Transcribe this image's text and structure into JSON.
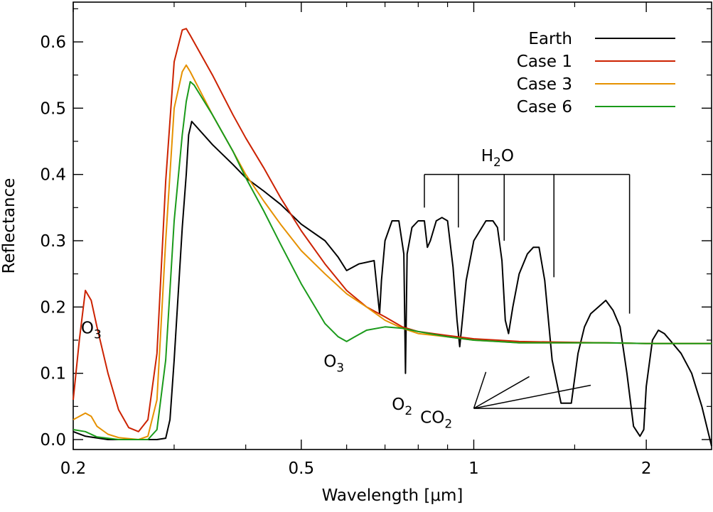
{
  "chart_data": {
    "type": "line",
    "xlabel": "Wavelength [μm]",
    "ylabel": "Reflectance",
    "xscale": "log",
    "xlim": [
      0.2,
      2.6
    ],
    "ylim": [
      -0.015,
      0.66
    ],
    "x_ticks": [
      {
        "value": 0.2,
        "label": "0.2"
      },
      {
        "value": 0.5,
        "label": "0.5"
      },
      {
        "value": 1.0,
        "label": "1"
      },
      {
        "value": 2.0,
        "label": "2"
      }
    ],
    "y_ticks": [
      {
        "value": 0.0,
        "label": "0.0"
      },
      {
        "value": 0.1,
        "label": "0.1"
      },
      {
        "value": 0.2,
        "label": "0.2"
      },
      {
        "value": 0.3,
        "label": "0.3"
      },
      {
        "value": 0.4,
        "label": "0.4"
      },
      {
        "value": 0.5,
        "label": "0.5"
      },
      {
        "value": 0.6,
        "label": "0.6"
      }
    ],
    "legend_position": "top-right",
    "series": [
      {
        "name": "Earth",
        "color": "#000000",
        "points": [
          [
            0.2,
            0.012
          ],
          [
            0.21,
            0.005
          ],
          [
            0.23,
            0.0
          ],
          [
            0.26,
            0.0
          ],
          [
            0.28,
            0.0
          ],
          [
            0.29,
            0.002
          ],
          [
            0.295,
            0.03
          ],
          [
            0.3,
            0.12
          ],
          [
            0.305,
            0.22
          ],
          [
            0.31,
            0.32
          ],
          [
            0.315,
            0.4
          ],
          [
            0.318,
            0.46
          ],
          [
            0.32,
            0.47
          ],
          [
            0.322,
            0.48
          ],
          [
            0.35,
            0.445
          ],
          [
            0.38,
            0.415
          ],
          [
            0.4,
            0.395
          ],
          [
            0.43,
            0.375
          ],
          [
            0.46,
            0.355
          ],
          [
            0.5,
            0.325
          ],
          [
            0.55,
            0.3
          ],
          [
            0.58,
            0.275
          ],
          [
            0.6,
            0.255
          ],
          [
            0.63,
            0.265
          ],
          [
            0.67,
            0.27
          ],
          [
            0.685,
            0.19
          ],
          [
            0.69,
            0.24
          ],
          [
            0.7,
            0.3
          ],
          [
            0.72,
            0.33
          ],
          [
            0.74,
            0.33
          ],
          [
            0.755,
            0.28
          ],
          [
            0.76,
            0.1
          ],
          [
            0.765,
            0.28
          ],
          [
            0.78,
            0.32
          ],
          [
            0.8,
            0.33
          ],
          [
            0.82,
            0.33
          ],
          [
            0.83,
            0.29
          ],
          [
            0.84,
            0.3
          ],
          [
            0.86,
            0.33
          ],
          [
            0.88,
            0.335
          ],
          [
            0.9,
            0.33
          ],
          [
            0.92,
            0.26
          ],
          [
            0.935,
            0.18
          ],
          [
            0.945,
            0.14
          ],
          [
            0.955,
            0.18
          ],
          [
            0.97,
            0.24
          ],
          [
            1.0,
            0.3
          ],
          [
            1.05,
            0.33
          ],
          [
            1.08,
            0.33
          ],
          [
            1.1,
            0.32
          ],
          [
            1.12,
            0.27
          ],
          [
            1.135,
            0.18
          ],
          [
            1.15,
            0.16
          ],
          [
            1.17,
            0.2
          ],
          [
            1.2,
            0.25
          ],
          [
            1.24,
            0.28
          ],
          [
            1.27,
            0.29
          ],
          [
            1.3,
            0.29
          ],
          [
            1.33,
            0.24
          ],
          [
            1.37,
            0.12
          ],
          [
            1.42,
            0.055
          ],
          [
            1.48,
            0.055
          ],
          [
            1.52,
            0.13
          ],
          [
            1.56,
            0.17
          ],
          [
            1.6,
            0.19
          ],
          [
            1.65,
            0.2
          ],
          [
            1.7,
            0.21
          ],
          [
            1.75,
            0.195
          ],
          [
            1.8,
            0.17
          ],
          [
            1.85,
            0.1
          ],
          [
            1.9,
            0.02
          ],
          [
            1.95,
            0.005
          ],
          [
            1.98,
            0.015
          ],
          [
            2.0,
            0.08
          ],
          [
            2.05,
            0.15
          ],
          [
            2.1,
            0.165
          ],
          [
            2.15,
            0.16
          ],
          [
            2.2,
            0.15
          ],
          [
            2.3,
            0.13
          ],
          [
            2.4,
            0.1
          ],
          [
            2.5,
            0.05
          ],
          [
            2.6,
            -0.01
          ]
        ]
      },
      {
        "name": "Case 1",
        "color": "#cc2200",
        "points": [
          [
            0.2,
            0.06
          ],
          [
            0.205,
            0.15
          ],
          [
            0.21,
            0.225
          ],
          [
            0.215,
            0.21
          ],
          [
            0.22,
            0.17
          ],
          [
            0.23,
            0.1
          ],
          [
            0.24,
            0.045
          ],
          [
            0.25,
            0.018
          ],
          [
            0.26,
            0.012
          ],
          [
            0.27,
            0.03
          ],
          [
            0.28,
            0.13
          ],
          [
            0.29,
            0.39
          ],
          [
            0.3,
            0.57
          ],
          [
            0.31,
            0.618
          ],
          [
            0.315,
            0.62
          ],
          [
            0.32,
            0.61
          ],
          [
            0.35,
            0.55
          ],
          [
            0.38,
            0.49
          ],
          [
            0.4,
            0.455
          ],
          [
            0.43,
            0.41
          ],
          [
            0.46,
            0.365
          ],
          [
            0.5,
            0.315
          ],
          [
            0.55,
            0.265
          ],
          [
            0.6,
            0.225
          ],
          [
            0.65,
            0.2
          ],
          [
            0.7,
            0.185
          ],
          [
            0.75,
            0.17
          ],
          [
            0.8,
            0.163
          ],
          [
            0.9,
            0.157
          ],
          [
            1.0,
            0.152
          ],
          [
            1.1,
            0.15
          ],
          [
            1.2,
            0.148
          ],
          [
            1.4,
            0.147
          ],
          [
            1.7,
            0.146
          ],
          [
            2.0,
            0.145
          ],
          [
            2.6,
            0.145
          ]
        ]
      },
      {
        "name": "Case 3",
        "color": "#e69100",
        "points": [
          [
            0.2,
            0.03
          ],
          [
            0.21,
            0.04
          ],
          [
            0.215,
            0.035
          ],
          [
            0.22,
            0.02
          ],
          [
            0.23,
            0.008
          ],
          [
            0.24,
            0.003
          ],
          [
            0.26,
            0.0
          ],
          [
            0.27,
            0.005
          ],
          [
            0.28,
            0.06
          ],
          [
            0.29,
            0.3
          ],
          [
            0.3,
            0.5
          ],
          [
            0.31,
            0.555
          ],
          [
            0.315,
            0.565
          ],
          [
            0.32,
            0.555
          ],
          [
            0.35,
            0.49
          ],
          [
            0.38,
            0.435
          ],
          [
            0.4,
            0.4
          ],
          [
            0.43,
            0.36
          ],
          [
            0.46,
            0.325
          ],
          [
            0.5,
            0.285
          ],
          [
            0.55,
            0.25
          ],
          [
            0.6,
            0.22
          ],
          [
            0.65,
            0.2
          ],
          [
            0.7,
            0.18
          ],
          [
            0.75,
            0.168
          ],
          [
            0.8,
            0.16
          ],
          [
            0.9,
            0.155
          ],
          [
            1.0,
            0.15
          ],
          [
            1.1,
            0.148
          ],
          [
            1.2,
            0.146
          ],
          [
            1.4,
            0.146
          ],
          [
            1.7,
            0.146
          ],
          [
            2.0,
            0.145
          ],
          [
            2.6,
            0.145
          ]
        ]
      },
      {
        "name": "Case 6",
        "color": "#1a9a1a",
        "points": [
          [
            0.2,
            0.015
          ],
          [
            0.21,
            0.012
          ],
          [
            0.22,
            0.004
          ],
          [
            0.24,
            0.0
          ],
          [
            0.27,
            0.0
          ],
          [
            0.28,
            0.015
          ],
          [
            0.29,
            0.12
          ],
          [
            0.3,
            0.33
          ],
          [
            0.31,
            0.46
          ],
          [
            0.315,
            0.51
          ],
          [
            0.32,
            0.54
          ],
          [
            0.325,
            0.535
          ],
          [
            0.35,
            0.49
          ],
          [
            0.38,
            0.435
          ],
          [
            0.4,
            0.395
          ],
          [
            0.43,
            0.345
          ],
          [
            0.46,
            0.295
          ],
          [
            0.5,
            0.235
          ],
          [
            0.55,
            0.175
          ],
          [
            0.58,
            0.155
          ],
          [
            0.6,
            0.148
          ],
          [
            0.62,
            0.155
          ],
          [
            0.65,
            0.165
          ],
          [
            0.7,
            0.17
          ],
          [
            0.75,
            0.168
          ],
          [
            0.8,
            0.163
          ],
          [
            0.9,
            0.155
          ],
          [
            1.0,
            0.15
          ],
          [
            1.1,
            0.148
          ],
          [
            1.2,
            0.146
          ],
          [
            1.4,
            0.146
          ],
          [
            1.7,
            0.146
          ],
          [
            2.0,
            0.145
          ],
          [
            2.6,
            0.145
          ]
        ]
      }
    ],
    "annotations": [
      {
        "id": "o3-uv",
        "text": "O",
        "sub": "3",
        "x": 0.215,
        "y": 0.16
      },
      {
        "id": "o3-vis",
        "text": "O",
        "sub": "3",
        "x": 0.57,
        "y": 0.11
      },
      {
        "id": "o2",
        "text": "O",
        "sub": "2",
        "x": 0.75,
        "y": 0.045
      },
      {
        "id": "co2",
        "text": "CO",
        "sub": "2",
        "x": 0.86,
        "y": 0.025
      },
      {
        "id": "h2o",
        "text": "H",
        "sub": "2",
        "text2": "O",
        "x": 1.1,
        "y": 0.42
      }
    ],
    "h2o_bracket": {
      "y_bar": 0.4,
      "label_y": 0.42,
      "bands": [
        {
          "x": 0.82,
          "y_end": 0.35
        },
        {
          "x": 0.94,
          "y_end": 0.32
        },
        {
          "x": 1.13,
          "y_end": 0.3
        },
        {
          "x": 1.38,
          "y_end": 0.245
        },
        {
          "x": 1.87,
          "y_end": 0.19
        }
      ]
    },
    "co2_lines": {
      "origin": [
        1.0,
        0.047
      ],
      "targets": [
        [
          1.05,
          0.102
        ],
        [
          1.25,
          0.095
        ],
        [
          1.6,
          0.082
        ],
        [
          2.0,
          0.047
        ]
      ]
    }
  }
}
